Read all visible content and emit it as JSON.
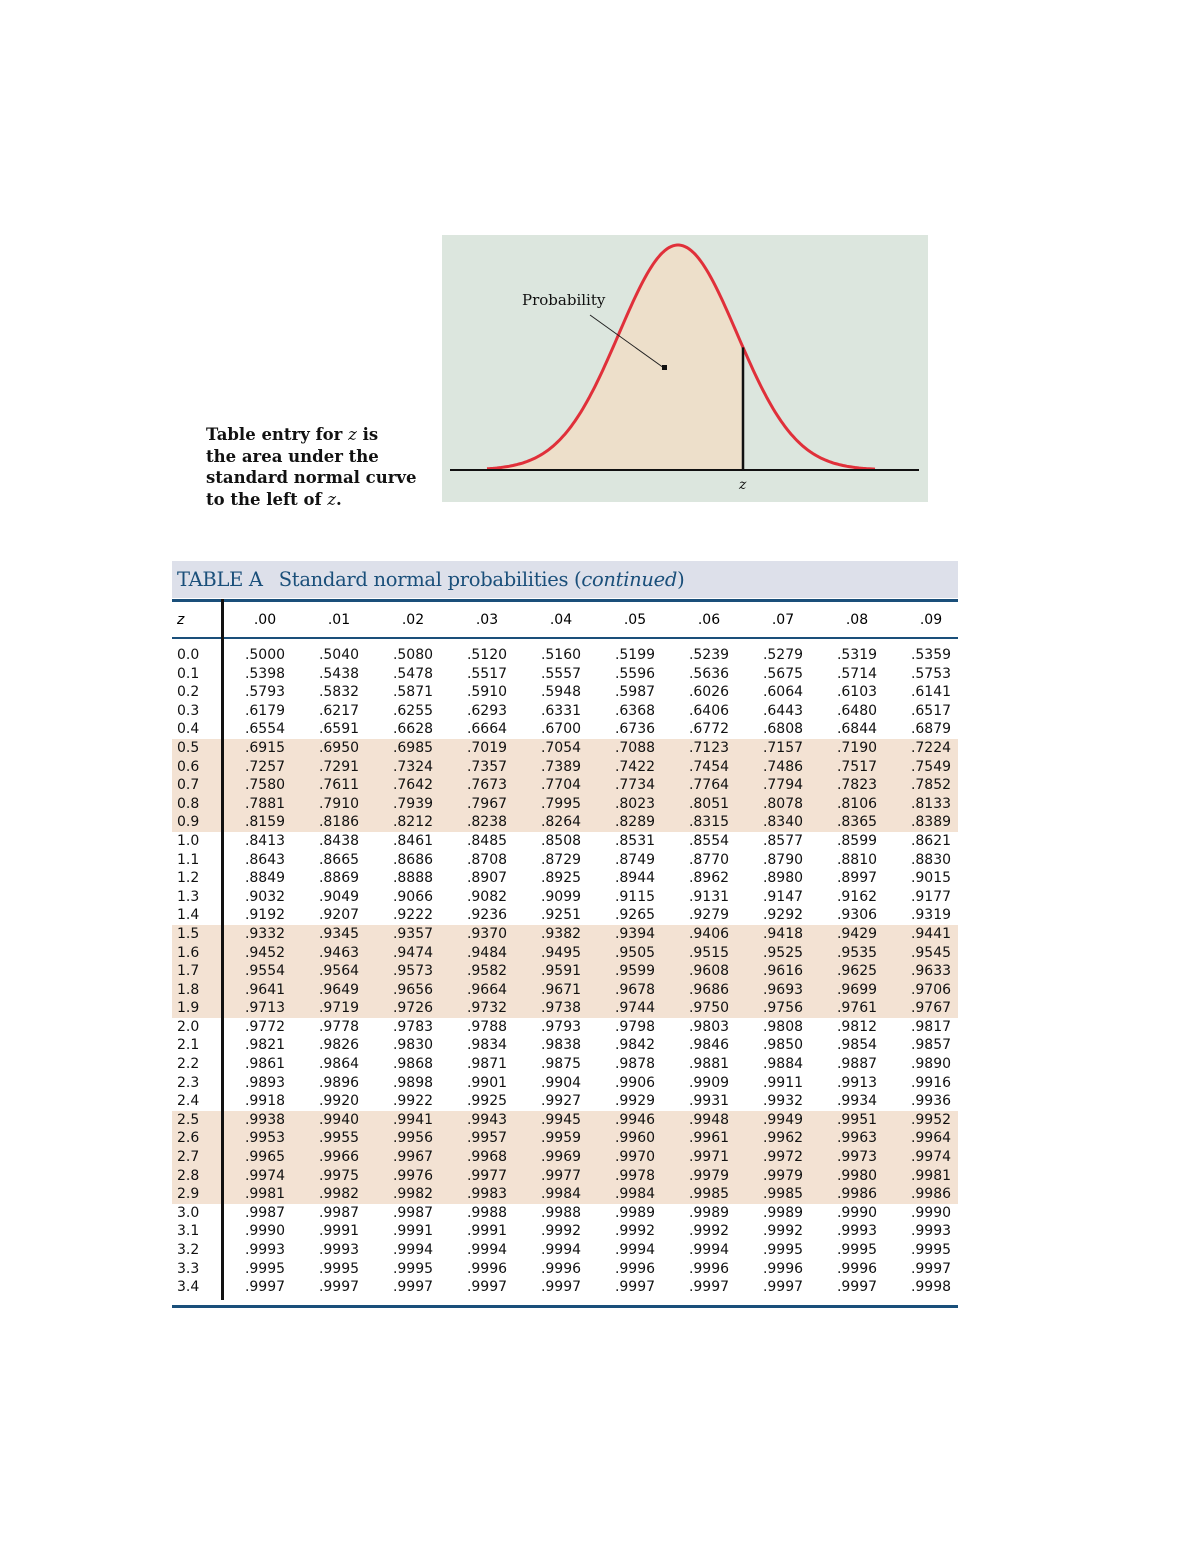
{
  "caption": {
    "line1a": "Table entry for ",
    "z": "z",
    "line1b": " is",
    "line2": "the area under the",
    "line3": "standard normal curve",
    "line4a": "to the left of ",
    "line4b": "."
  },
  "figure": {
    "label": "Probability",
    "z_label": "z",
    "colors": {
      "background": "#dce6de",
      "fill": "#eddfca",
      "curve": "#e0303a"
    }
  },
  "table": {
    "title_prefix": "TABLE A",
    "title": "Standard normal probabilities (",
    "title_italic": "continued",
    "title_suffix": ")",
    "colors": {
      "title_bg": "#dde0ea",
      "rule": "#1a4f7a",
      "shade": "#f3e2d3"
    },
    "headers": [
      "z",
      ".00",
      ".01",
      ".02",
      ".03",
      ".04",
      ".05",
      ".06",
      ".07",
      ".08",
      ".09"
    ],
    "rows": [
      [
        "0.0",
        ".5000",
        ".5040",
        ".5080",
        ".5120",
        ".5160",
        ".5199",
        ".5239",
        ".5279",
        ".5319",
        ".5359"
      ],
      [
        "0.1",
        ".5398",
        ".5438",
        ".5478",
        ".5517",
        ".5557",
        ".5596",
        ".5636",
        ".5675",
        ".5714",
        ".5753"
      ],
      [
        "0.2",
        ".5793",
        ".5832",
        ".5871",
        ".5910",
        ".5948",
        ".5987",
        ".6026",
        ".6064",
        ".6103",
        ".6141"
      ],
      [
        "0.3",
        ".6179",
        ".6217",
        ".6255",
        ".6293",
        ".6331",
        ".6368",
        ".6406",
        ".6443",
        ".6480",
        ".6517"
      ],
      [
        "0.4",
        ".6554",
        ".6591",
        ".6628",
        ".6664",
        ".6700",
        ".6736",
        ".6772",
        ".6808",
        ".6844",
        ".6879"
      ],
      [
        "0.5",
        ".6915",
        ".6950",
        ".6985",
        ".7019",
        ".7054",
        ".7088",
        ".7123",
        ".7157",
        ".7190",
        ".7224"
      ],
      [
        "0.6",
        ".7257",
        ".7291",
        ".7324",
        ".7357",
        ".7389",
        ".7422",
        ".7454",
        ".7486",
        ".7517",
        ".7549"
      ],
      [
        "0.7",
        ".7580",
        ".7611",
        ".7642",
        ".7673",
        ".7704",
        ".7734",
        ".7764",
        ".7794",
        ".7823",
        ".7852"
      ],
      [
        "0.8",
        ".7881",
        ".7910",
        ".7939",
        ".7967",
        ".7995",
        ".8023",
        ".8051",
        ".8078",
        ".8106",
        ".8133"
      ],
      [
        "0.9",
        ".8159",
        ".8186",
        ".8212",
        ".8238",
        ".8264",
        ".8289",
        ".8315",
        ".8340",
        ".8365",
        ".8389"
      ],
      [
        "1.0",
        ".8413",
        ".8438",
        ".8461",
        ".8485",
        ".8508",
        ".8531",
        ".8554",
        ".8577",
        ".8599",
        ".8621"
      ],
      [
        "1.1",
        ".8643",
        ".8665",
        ".8686",
        ".8708",
        ".8729",
        ".8749",
        ".8770",
        ".8790",
        ".8810",
        ".8830"
      ],
      [
        "1.2",
        ".8849",
        ".8869",
        ".8888",
        ".8907",
        ".8925",
        ".8944",
        ".8962",
        ".8980",
        ".8997",
        ".9015"
      ],
      [
        "1.3",
        ".9032",
        ".9049",
        ".9066",
        ".9082",
        ".9099",
        ".9115",
        ".9131",
        ".9147",
        ".9162",
        ".9177"
      ],
      [
        "1.4",
        ".9192",
        ".9207",
        ".9222",
        ".9236",
        ".9251",
        ".9265",
        ".9279",
        ".9292",
        ".9306",
        ".9319"
      ],
      [
        "1.5",
        ".9332",
        ".9345",
        ".9357",
        ".9370",
        ".9382",
        ".9394",
        ".9406",
        ".9418",
        ".9429",
        ".9441"
      ],
      [
        "1.6",
        ".9452",
        ".9463",
        ".9474",
        ".9484",
        ".9495",
        ".9505",
        ".9515",
        ".9525",
        ".9535",
        ".9545"
      ],
      [
        "1.7",
        ".9554",
        ".9564",
        ".9573",
        ".9582",
        ".9591",
        ".9599",
        ".9608",
        ".9616",
        ".9625",
        ".9633"
      ],
      [
        "1.8",
        ".9641",
        ".9649",
        ".9656",
        ".9664",
        ".9671",
        ".9678",
        ".9686",
        ".9693",
        ".9699",
        ".9706"
      ],
      [
        "1.9",
        ".9713",
        ".9719",
        ".9726",
        ".9732",
        ".9738",
        ".9744",
        ".9750",
        ".9756",
        ".9761",
        ".9767"
      ],
      [
        "2.0",
        ".9772",
        ".9778",
        ".9783",
        ".9788",
        ".9793",
        ".9798",
        ".9803",
        ".9808",
        ".9812",
        ".9817"
      ],
      [
        "2.1",
        ".9821",
        ".9826",
        ".9830",
        ".9834",
        ".9838",
        ".9842",
        ".9846",
        ".9850",
        ".9854",
        ".9857"
      ],
      [
        "2.2",
        ".9861",
        ".9864",
        ".9868",
        ".9871",
        ".9875",
        ".9878",
        ".9881",
        ".9884",
        ".9887",
        ".9890"
      ],
      [
        "2.3",
        ".9893",
        ".9896",
        ".9898",
        ".9901",
        ".9904",
        ".9906",
        ".9909",
        ".9911",
        ".9913",
        ".9916"
      ],
      [
        "2.4",
        ".9918",
        ".9920",
        ".9922",
        ".9925",
        ".9927",
        ".9929",
        ".9931",
        ".9932",
        ".9934",
        ".9936"
      ],
      [
        "2.5",
        ".9938",
        ".9940",
        ".9941",
        ".9943",
        ".9945",
        ".9946",
        ".9948",
        ".9949",
        ".9951",
        ".9952"
      ],
      [
        "2.6",
        ".9953",
        ".9955",
        ".9956",
        ".9957",
        ".9959",
        ".9960",
        ".9961",
        ".9962",
        ".9963",
        ".9964"
      ],
      [
        "2.7",
        ".9965",
        ".9966",
        ".9967",
        ".9968",
        ".9969",
        ".9970",
        ".9971",
        ".9972",
        ".9973",
        ".9974"
      ],
      [
        "2.8",
        ".9974",
        ".9975",
        ".9976",
        ".9977",
        ".9977",
        ".9978",
        ".9979",
        ".9979",
        ".9980",
        ".9981"
      ],
      [
        "2.9",
        ".9981",
        ".9982",
        ".9982",
        ".9983",
        ".9984",
        ".9984",
        ".9985",
        ".9985",
        ".9986",
        ".9986"
      ],
      [
        "3.0",
        ".9987",
        ".9987",
        ".9987",
        ".9988",
        ".9988",
        ".9989",
        ".9989",
        ".9989",
        ".9990",
        ".9990"
      ],
      [
        "3.1",
        ".9990",
        ".9991",
        ".9991",
        ".9991",
        ".9992",
        ".9992",
        ".9992",
        ".9992",
        ".9993",
        ".9993"
      ],
      [
        "3.2",
        ".9993",
        ".9993",
        ".9994",
        ".9994",
        ".9994",
        ".9994",
        ".9994",
        ".9995",
        ".9995",
        ".9995"
      ],
      [
        "3.3",
        ".9995",
        ".9995",
        ".9995",
        ".9996",
        ".9996",
        ".9996",
        ".9996",
        ".9996",
        ".9996",
        ".9997"
      ],
      [
        "3.4",
        ".9997",
        ".9997",
        ".9997",
        ".9997",
        ".9997",
        ".9997",
        ".9997",
        ".9997",
        ".9997",
        ".9998"
      ]
    ]
  }
}
